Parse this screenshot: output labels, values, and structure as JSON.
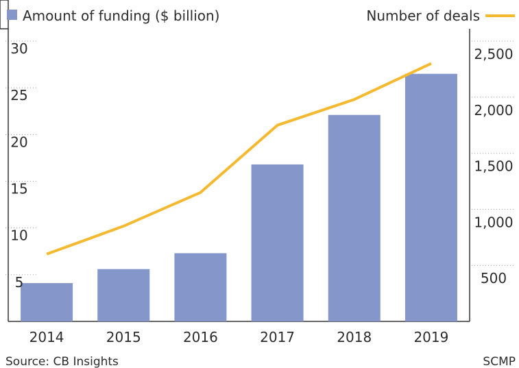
{
  "chart_data": {
    "type": "bar",
    "categories": [
      "2014",
      "2015",
      "2016",
      "2017",
      "2018",
      "2019"
    ],
    "series": [
      {
        "name": "Amount of funding ($ billion)",
        "kind": "bar",
        "axis": "left",
        "values": [
          4.1,
          5.6,
          7.3,
          16.8,
          22.1,
          26.5
        ],
        "color": "#8596cb"
      },
      {
        "name": "Number of deals",
        "kind": "line",
        "axis": "right",
        "values": [
          600,
          850,
          1150,
          1750,
          1980,
          2300
        ],
        "color": "#f4b92e"
      }
    ],
    "left_axis": {
      "ylim": [
        0,
        30
      ],
      "ticks": [
        "5",
        "10",
        "15",
        "20",
        "25",
        "30"
      ]
    },
    "right_axis": {
      "ylim": [
        0,
        2500
      ],
      "ticks": [
        "500",
        "1,000",
        "1,500",
        "2,000",
        "2,500"
      ]
    },
    "grid": true,
    "legend": {
      "placement": "top"
    },
    "source": "Source: CB Insights",
    "credit": "SCMP"
  }
}
